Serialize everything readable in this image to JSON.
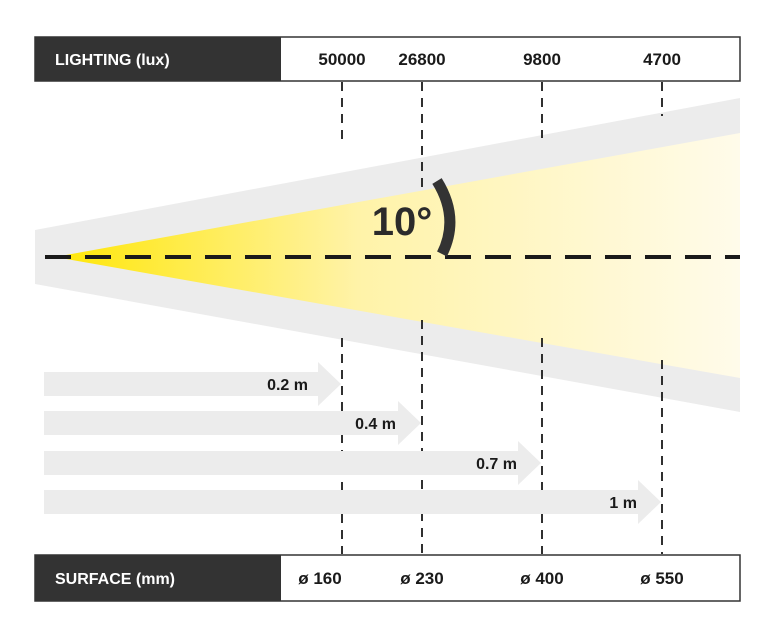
{
  "lighting": {
    "label": "LIGHTING (lux)",
    "values": [
      "50000",
      "26800",
      "9800",
      "4700"
    ]
  },
  "surface": {
    "label": "SURFACE (mm)",
    "values": [
      "ø 160",
      "ø 230",
      "ø 400",
      "ø 550"
    ]
  },
  "beam": {
    "angle_label": "10°",
    "start_color": "#ffe600",
    "end_color": "#fffbea",
    "halo_color": "#ececec"
  },
  "distances": [
    "0.2 m",
    "0.4 m",
    "0.7 m",
    "1 m"
  ],
  "colors": {
    "header_dark": "#333333",
    "arrow_fill": "#ececec",
    "line": "#1a1a1a"
  }
}
